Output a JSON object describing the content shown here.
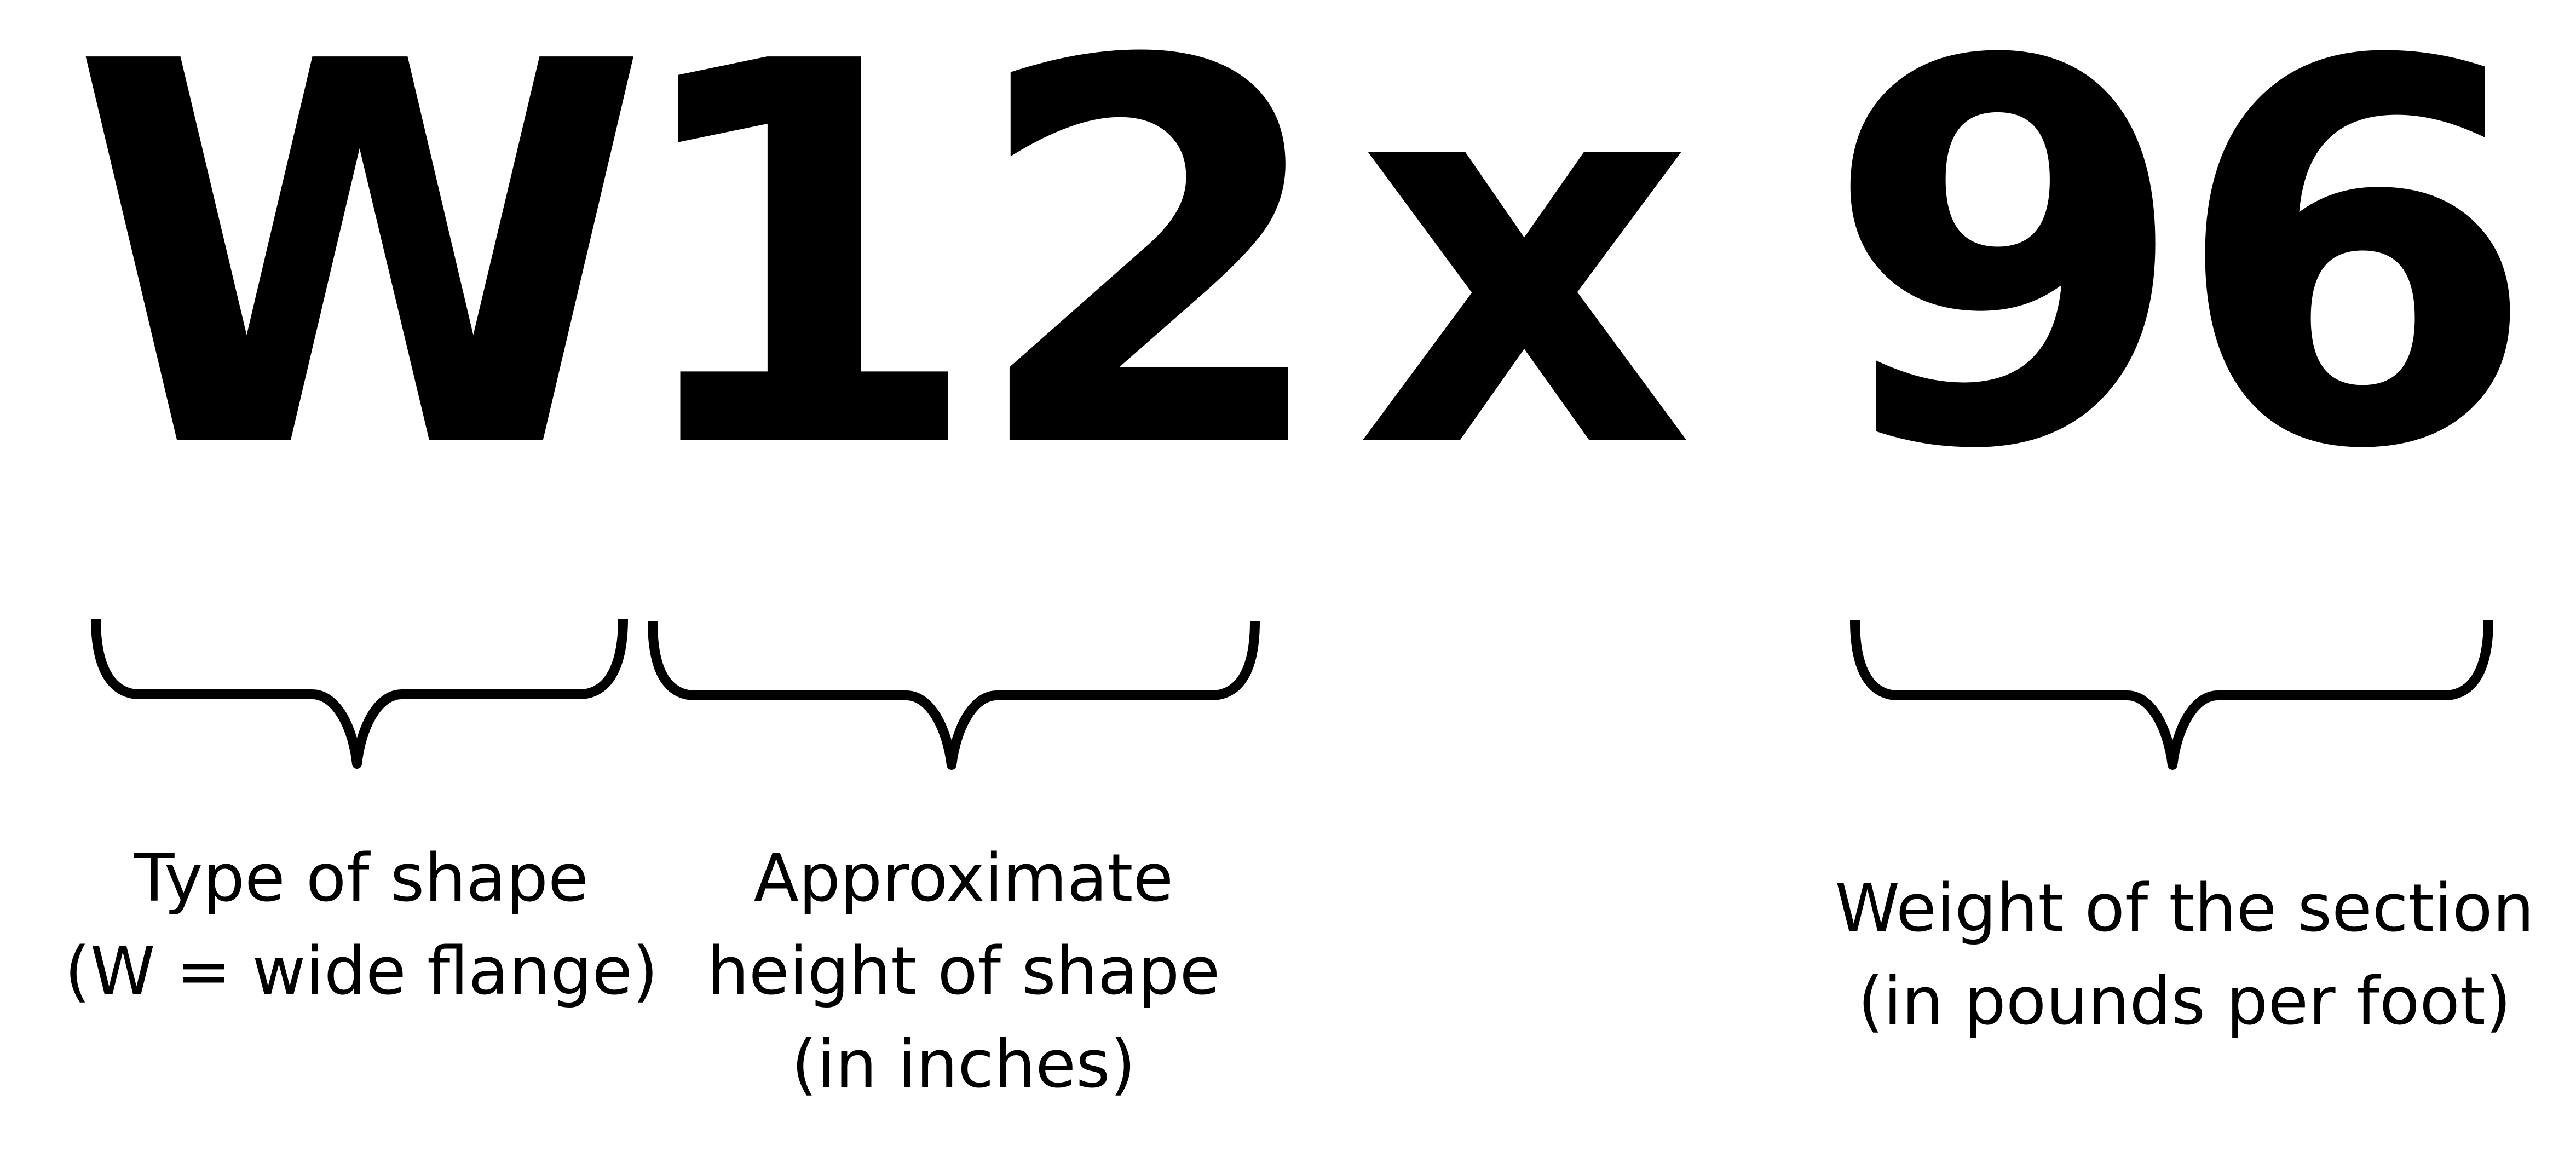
{
  "designation": {
    "type": "W",
    "height": "12",
    "x": "x",
    "weight": "96"
  },
  "labels": {
    "type": [
      "Type of shape",
      "(W = wide flange)"
    ],
    "height": [
      "Approximate",
      "height of shape",
      "(in inches)"
    ],
    "weight": [
      "Weight of the section",
      "(in pounds per foot)"
    ]
  },
  "colors": {
    "text": "#000000",
    "background": "#ffffff"
  }
}
